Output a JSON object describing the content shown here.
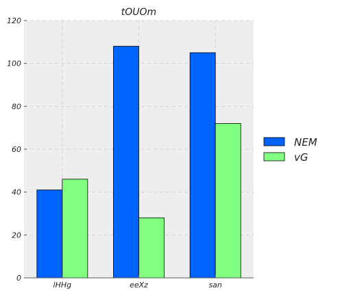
{
  "chart_data": {
    "type": "bar",
    "title": "tOUOm",
    "xlabel": "",
    "ylabel": "",
    "categories": [
      "lHHg",
      "eeXz",
      "san"
    ],
    "series": [
      {
        "name": "NEM",
        "values": [
          41,
          108,
          105
        ],
        "color": "#0062ff"
      },
      {
        "name": "vG",
        "values": [
          46,
          28,
          72
        ],
        "color": "#80ff80"
      }
    ],
    "ylim": [
      0,
      120
    ],
    "yticks": [
      0,
      20,
      40,
      60,
      80,
      100,
      120
    ],
    "grid": true,
    "legend": "right",
    "plot_background": "#eeeeee"
  }
}
